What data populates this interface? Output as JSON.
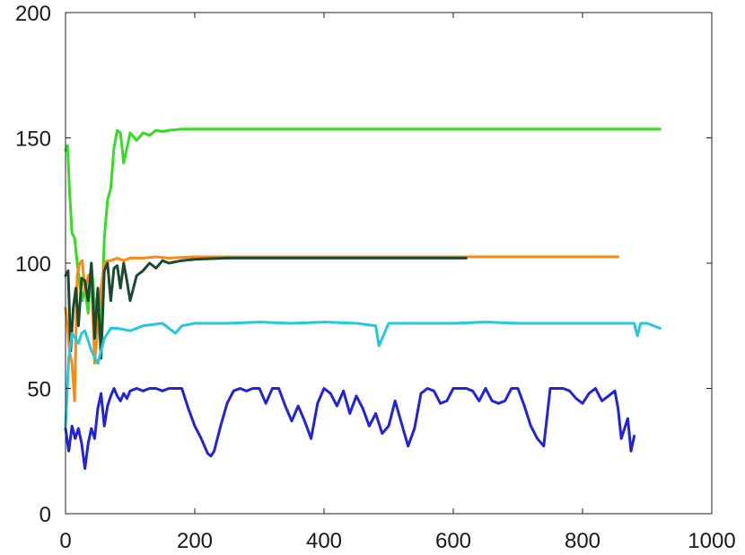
{
  "chart_data": {
    "type": "line",
    "title": "",
    "xlabel": "",
    "ylabel": "",
    "xlim": [
      0,
      1000
    ],
    "ylim": [
      0,
      200
    ],
    "xticks": [
      0,
      200,
      400,
      600,
      800,
      1000
    ],
    "yticks": [
      0,
      50,
      100,
      150,
      200
    ],
    "xtick_labels": [
      "0",
      "200",
      "400",
      "600",
      "800",
      "1000"
    ],
    "ytick_labels": [
      "0",
      "50",
      "100",
      "150",
      "200"
    ],
    "grid": false,
    "legend": "none",
    "series": [
      {
        "color": "#33dd22",
        "x": [
          0,
          3,
          6,
          10,
          14,
          18,
          22,
          26,
          30,
          35,
          40,
          45,
          50,
          55,
          60,
          65,
          70,
          75,
          80,
          85,
          90,
          95,
          100,
          110,
          120,
          130,
          140,
          150,
          160,
          180,
          200,
          300,
          400,
          500,
          600,
          700,
          800,
          920
        ],
        "y": [
          145,
          147,
          130,
          112,
          110,
          100,
          92,
          85,
          90,
          80,
          100,
          84,
          75,
          70,
          110,
          125,
          130,
          146,
          153,
          152,
          140,
          146,
          152,
          149,
          152,
          151,
          153,
          152.5,
          153,
          153.5,
          153.5,
          153.5,
          153.5,
          153.5,
          153.5,
          153.5,
          153.5,
          153.5
        ]
      },
      {
        "color": "#ff8811",
        "x": [
          0,
          3,
          6,
          10,
          14,
          18,
          22,
          26,
          30,
          35,
          40,
          45,
          50,
          55,
          60,
          65,
          70,
          80,
          90,
          100,
          120,
          140,
          160,
          200,
          300,
          400,
          500,
          600,
          700,
          855
        ],
        "y": [
          82,
          75,
          65,
          60,
          45,
          95,
          100,
          101,
          88,
          95,
          96,
          60,
          75,
          90,
          100,
          101,
          101,
          102,
          101,
          102,
          102,
          102.5,
          102,
          102.5,
          102.5,
          102.5,
          102.5,
          102.5,
          102.5,
          102.5
        ]
      },
      {
        "color": "#1a4a30",
        "x": [
          0,
          4,
          8,
          12,
          16,
          20,
          25,
          30,
          35,
          40,
          45,
          50,
          55,
          60,
          65,
          70,
          75,
          80,
          85,
          90,
          95,
          100,
          110,
          120,
          130,
          140,
          150,
          160,
          180,
          200,
          250,
          300,
          400,
          500,
          620
        ],
        "y": [
          95,
          97,
          65,
          82,
          90,
          75,
          94,
          93,
          85,
          100,
          70,
          90,
          62,
          97,
          100,
          85,
          98,
          99,
          90,
          100,
          93,
          85,
          95,
          97,
          100,
          98,
          101,
          100,
          101,
          101.5,
          102,
          102,
          102,
          102,
          102
        ]
      },
      {
        "color": "#22c8dd",
        "x": [
          0,
          5,
          10,
          15,
          20,
          25,
          30,
          40,
          50,
          60,
          70,
          80,
          100,
          120,
          150,
          170,
          180,
          200,
          250,
          300,
          350,
          400,
          450,
          480,
          485,
          490,
          500,
          550,
          600,
          650,
          700,
          750,
          800,
          850,
          880,
          885,
          890,
          900,
          920
        ],
        "y": [
          35,
          62,
          72,
          70,
          68,
          72,
          73,
          65,
          60,
          70,
          74,
          74,
          73,
          75,
          76,
          72,
          75,
          76,
          76,
          76.5,
          76,
          76.5,
          76,
          75,
          67,
          70,
          76,
          76,
          76,
          76.5,
          76,
          76,
          76,
          76,
          76,
          71,
          76,
          76,
          74
        ]
      },
      {
        "color": "#2222dd",
        "x": [
          0,
          5,
          10,
          15,
          20,
          25,
          30,
          35,
          40,
          45,
          50,
          55,
          60,
          65,
          70,
          75,
          80,
          85,
          90,
          95,
          100,
          110,
          120,
          130,
          140,
          150,
          160,
          170,
          180,
          190,
          200,
          210,
          220,
          225,
          230,
          240,
          250,
          260,
          270,
          280,
          290,
          300,
          310,
          320,
          330,
          340,
          350,
          360,
          370,
          380,
          390,
          400,
          410,
          420,
          430,
          440,
          450,
          460,
          470,
          480,
          490,
          500,
          510,
          520,
          530,
          540,
          550,
          560,
          570,
          580,
          590,
          600,
          610,
          620,
          630,
          640,
          650,
          660,
          670,
          680,
          690,
          700,
          710,
          720,
          730,
          740,
          750,
          760,
          770,
          780,
          790,
          800,
          810,
          820,
          830,
          840,
          850,
          855,
          860,
          870,
          875,
          880
        ],
        "y": [
          34,
          25,
          35,
          30,
          34,
          28,
          18,
          28,
          34,
          30,
          42,
          48,
          35,
          43,
          47,
          50,
          47,
          45,
          48,
          46,
          49,
          50,
          49,
          50,
          50,
          49,
          50,
          50,
          50,
          42,
          35,
          30,
          24,
          23,
          25,
          35,
          44,
          49,
          50,
          49,
          50,
          50,
          44,
          50,
          50,
          43,
          37,
          43,
          37,
          30,
          44,
          50,
          48,
          43,
          49,
          40,
          47,
          42,
          35,
          40,
          32,
          35,
          45,
          36,
          27,
          34,
          48,
          50,
          49,
          44,
          45,
          50,
          50,
          50,
          49,
          45,
          50,
          45,
          44,
          45,
          50,
          50,
          43,
          35,
          30,
          27,
          50,
          50,
          50,
          49,
          46,
          44,
          48,
          50,
          45,
          47,
          49,
          42,
          30,
          38,
          25,
          31
        ]
      }
    ]
  }
}
